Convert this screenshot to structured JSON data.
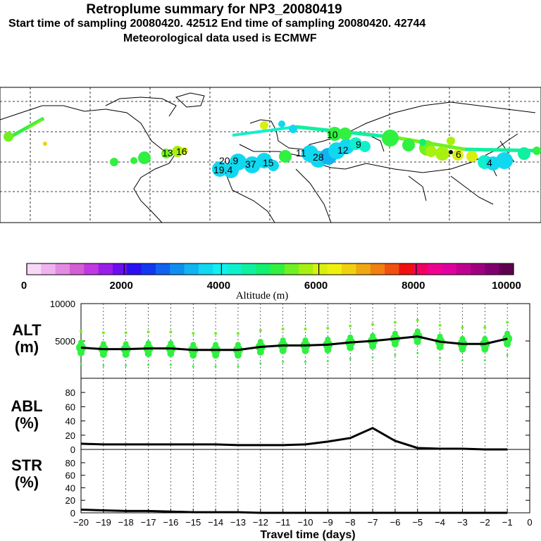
{
  "header": {
    "title": "Retroplume summary for NP3_20080419",
    "line2": "Start time of sampling 20080420. 42512     End time of sampling 20080420. 42744",
    "line3": "Meteorological data used is ECMWF"
  },
  "colorbar": {
    "label": "Altitude (m)",
    "ticks": [
      "0",
      "2000",
      "4000",
      "6000",
      "8000",
      "10000"
    ],
    "colors": [
      "#f7d8f7",
      "#efb3ef",
      "#e38be3",
      "#d35fd3",
      "#c238e0",
      "#9a1ee8",
      "#6a10f0",
      "#2a10f0",
      "#1038f0",
      "#1062f0",
      "#108ef0",
      "#10b4f0",
      "#10d8f0",
      "#10f0f0",
      "#10f0cc",
      "#10f0a0",
      "#10f070",
      "#30f040",
      "#70f020",
      "#a8f010",
      "#d8f010",
      "#f0f010",
      "#f0d010",
      "#f0a810",
      "#f08010",
      "#f05010",
      "#f01010",
      "#f00060",
      "#f00090",
      "#e000a0",
      "#c00090",
      "#a00080",
      "#800070",
      "#600050"
    ]
  },
  "map_labels": [
    "20.9",
    "37",
    "15",
    "19.4",
    "28",
    "12",
    "10",
    "9",
    "6",
    "4",
    "16",
    "13",
    "11"
  ],
  "chart_data": {
    "type": "line",
    "xlabel": "Travel time (days)",
    "x_ticks": [
      -20,
      -19,
      -18,
      -17,
      -16,
      -15,
      -14,
      -13,
      -12,
      -11,
      -10,
      -9,
      -8,
      -7,
      -6,
      -5,
      -4,
      -3,
      -2,
      -1,
      0
    ],
    "x": [
      -20,
      -19,
      -18,
      -17,
      -16,
      -15,
      -14,
      -13,
      -12,
      -11,
      -10,
      -9,
      -8,
      -7,
      -6,
      -5,
      -4,
      -3,
      -2,
      -1
    ],
    "panels": [
      {
        "name": "ALT",
        "ylabel": [
          "ALT",
          "(m)"
        ],
        "ylim": [
          0,
          10000
        ],
        "yticks": [
          5000,
          10000
        ],
        "yticklabels": [
          "5000",
          "10000"
        ],
        "values": [
          4100,
          3900,
          3900,
          4000,
          4000,
          3800,
          3800,
          3800,
          4200,
          4400,
          4400,
          4500,
          4800,
          5000,
          5300,
          5600,
          4900,
          4600,
          4600,
          5300
        ]
      },
      {
        "name": "ABL",
        "ylabel": [
          "ABL",
          "(%)"
        ],
        "ylim": [
          0,
          90
        ],
        "yticks": [
          0,
          20,
          40,
          60,
          80
        ],
        "yticklabels": [
          "0",
          "20",
          "40",
          "60",
          "80"
        ],
        "values": [
          8,
          7,
          7,
          7,
          7,
          7,
          7,
          6,
          6,
          6,
          7,
          11,
          16,
          30,
          12,
          2,
          1,
          1,
          0,
          0
        ]
      },
      {
        "name": "STR",
        "ylabel": [
          "STR",
          "(%)"
        ],
        "ylim": [
          0,
          90
        ],
        "yticks": [
          0,
          20,
          40,
          60,
          80
        ],
        "yticklabels": [
          "0",
          "20",
          "40",
          "60",
          "80"
        ],
        "values": [
          5,
          4,
          3,
          3,
          2,
          1,
          1,
          1,
          0,
          0,
          0,
          0,
          0,
          0,
          0,
          0,
          0,
          0,
          0,
          0
        ]
      }
    ]
  }
}
